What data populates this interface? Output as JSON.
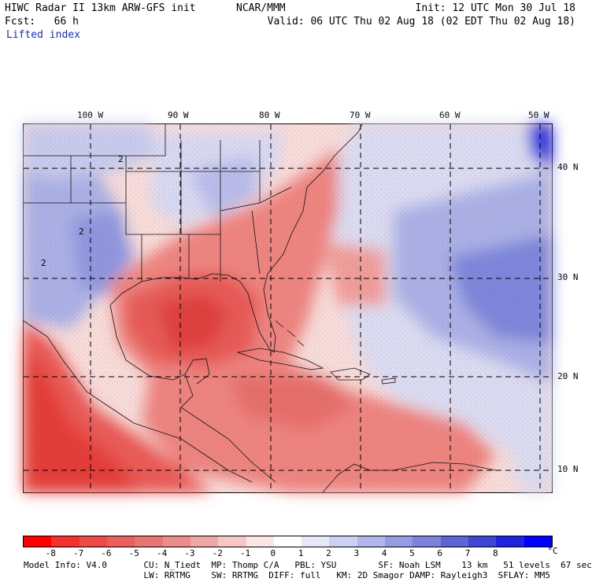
{
  "header": {
    "left_line1": "HIWC Radar II 13km ARW-GFS init",
    "left_line2": "Fcst:   66 h",
    "subtitle": "Lifted index",
    "center_line1": "NCAR/MMM",
    "right_line1": "Init: 12 UTC Mon 30 Jul 18",
    "right_line2": "Valid: 06 UTC Thu 02 Aug 18 (02 EDT Thu 02 Aug 18)"
  },
  "map": {
    "lon_labels": [
      "100 W",
      "90 W",
      "80 W",
      "70 W",
      "60 W",
      "50 W"
    ],
    "lat_labels": [
      "40 N",
      "30 N",
      "20 N",
      "10 N"
    ],
    "contour_labels": [
      "2",
      "2",
      "2"
    ]
  },
  "colorbar": {
    "ticks": [
      "-8",
      "-7",
      "-6",
      "-5",
      "-4",
      "-3",
      "-2",
      "-1",
      "0",
      "1",
      "2",
      "3",
      "4",
      "5",
      "6",
      "7",
      "8"
    ],
    "unit": "°C",
    "colors": [
      "#ff0000",
      "#f5302e",
      "#ee4a48",
      "#ea5f5d",
      "#e87573",
      "#ec8d8b",
      "#f0a8a6",
      "#f5c7c5",
      "#fbe6e5",
      "#ffffff",
      "#e6e8f8",
      "#ccd0f1",
      "#b1b7ea",
      "#959ce2",
      "#7a82dc",
      "#5d65d6",
      "#3e46d5",
      "#1c24e0",
      "#0000ff"
    ]
  },
  "footer": {
    "line1": "Model Info: V4.0       CU: N_Tiedt  MP: Thomp C/A   PBL: YSU        SF: Noah LSM    13 km   51 levels  67 sec",
    "line2": "                       LW: RRTMG    SW: RRTMG  DIFF: full   KM: 2D Smagor DAMP: Rayleigh3  SFLAY: MM5"
  },
  "colors": {
    "text_blue": "#1a2fa8",
    "unstable_red": "#e8605d",
    "stable_blue": "#6a78d8",
    "border": "#000000"
  }
}
